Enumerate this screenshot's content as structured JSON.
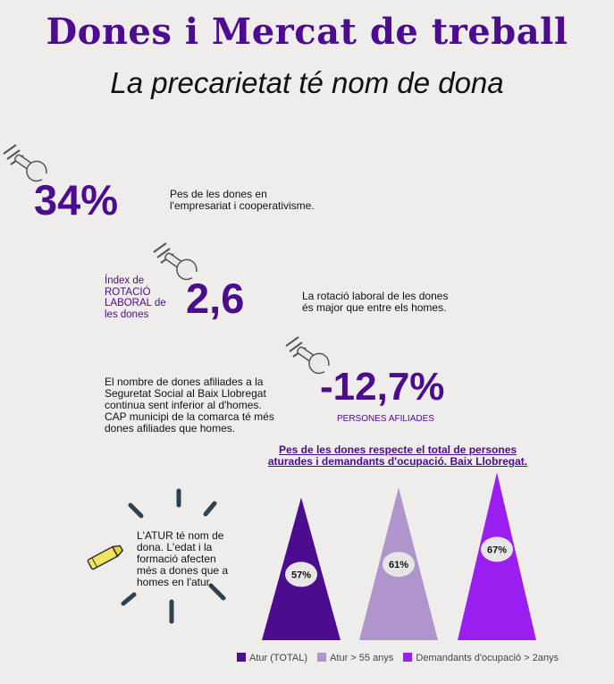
{
  "header": {
    "title": "Dones i Mercat de treball",
    "subtitle": "La precarietat té nom de dona"
  },
  "stats": {
    "women_business": {
      "value": "34%",
      "description_line1": "Pes de les dones en",
      "description_line2": "l'empresariat i cooperativisme."
    },
    "rotation": {
      "label_line1": "Índex de",
      "label_line2": "ROTACIÓ",
      "label_line3": "LABORAL de",
      "label_line4": "les dones",
      "value": "2,6",
      "description_line1": "La rotació laboral de les dones",
      "description_line2": "és major que entre els homes."
    },
    "affiliates": {
      "description_line1": "El nombre de dones afiliades a la",
      "description_line2": "Seguretat Social al Baix Llobregat",
      "description_line3": "continua sent inferior al d'homes.",
      "description_line4": "CAP municipi de la comarca té més",
      "description_line5": "dones afiliades que homes.",
      "value": "-12,7%",
      "caption": "PERSONES AFILIADES"
    },
    "unemployment": {
      "text_line1": "L'ATUR té nom de",
      "text_line2": "dona. L'edat i la",
      "text_line3": "formació afecten",
      "text_line4": "més a dones que a",
      "text_line5": "homes en l'atur."
    }
  },
  "icons": {
    "wrench": "wrench-icon",
    "highlighter": "highlighter-icon"
  },
  "chart_data": {
    "type": "bar",
    "title_line1": "Pes de les dones respecte el total de persones",
    "title_line2": "aturades i demandants d'ocupació. Baix Llobregat.",
    "categories": [
      "Atur (TOTAL)",
      "Atur > 55 anys",
      "Demandants d'ocupació > 2anys"
    ],
    "values": [
      57,
      61,
      67
    ],
    "value_labels": [
      "57%",
      "61%",
      "67%"
    ],
    "colors": [
      "#4b0c8f",
      "#b094cc",
      "#9b1ef0"
    ],
    "ylim": [
      0,
      70
    ],
    "legend_position": "bottom"
  }
}
